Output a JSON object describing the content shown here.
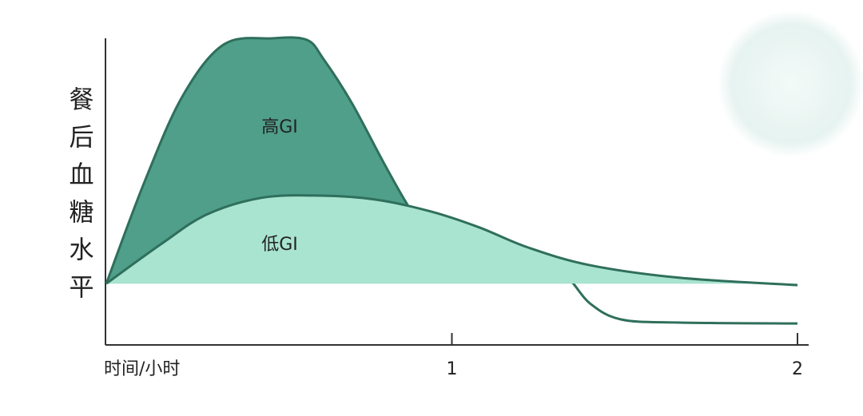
{
  "chart_data": {
    "type": "area",
    "y_label": "餐后血糖水平",
    "x_label": "时间/小时",
    "xlim": [
      0,
      2
    ],
    "xticks": [
      1,
      2
    ],
    "ylim": [
      0,
      100
    ],
    "series": [
      {
        "name": "高GI",
        "color": "#4f9f8a",
        "line_color": "#2f6f5c",
        "x": [
          0,
          0.11,
          0.22,
          0.34,
          0.48,
          0.58,
          0.63,
          0.71,
          0.8,
          0.87,
          0.94,
          1.01,
          1.1,
          1.19,
          1.29,
          1.34,
          1.4,
          1.49,
          1.66,
          2
        ],
        "values": [
          20,
          53,
          81,
          98,
          100,
          99.5,
          93,
          79,
          60,
          46,
          34,
          28,
          24.5,
          23.7,
          24,
          21.4,
          13.5,
          8.3,
          7.3,
          7
        ]
      },
      {
        "name": "低GI",
        "color": "#a9e4d0",
        "line_color": "#2f6f5c",
        "x": [
          0,
          0.16,
          0.29,
          0.45,
          0.62,
          0.78,
          0.94,
          1.08,
          1.22,
          1.4,
          1.66,
          2
        ],
        "values": [
          20,
          33,
          42.5,
          48,
          48.7,
          47.4,
          43.5,
          38.3,
          31.8,
          26,
          21.9,
          19.5
        ]
      }
    ]
  }
}
